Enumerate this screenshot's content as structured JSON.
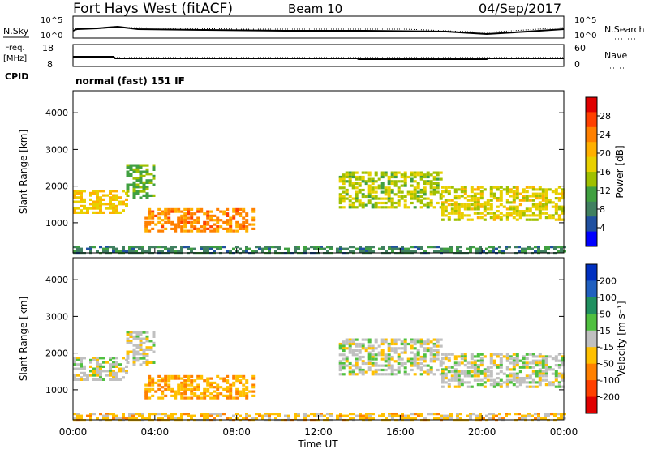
{
  "header": {
    "station": "Fort Hays West (fitACF)",
    "beam": "Beam 10",
    "date": "04/Sep/2017"
  },
  "strips": {
    "nsky_label": "N.Sky",
    "nsearch_label": "N.Search",
    "noise_ticks": [
      "10^5",
      "10^0"
    ],
    "freq_label_1": "Freq.",
    "freq_label_2": "[MHz]",
    "freq_ticks": [
      "18",
      "8"
    ],
    "nave_label": "Nave",
    "nave_ticks": [
      "60",
      "0"
    ],
    "cpid_label": "CPID",
    "cpid_text": "normal (fast) 151 IF"
  },
  "power_panel": {
    "ylabel": "Slant Range [km]",
    "colorbar_label": "Power [dB]",
    "colorbar_ticks": [
      "28",
      "24",
      "20",
      "16",
      "12",
      "8",
      "4"
    ],
    "colorbar_colors": [
      "#e00000",
      "#ff4000",
      "#ff8000",
      "#ffb000",
      "#e8d000",
      "#a0c000",
      "#40a040",
      "#408060",
      "#2050a0",
      "#0000ff"
    ]
  },
  "velocity_panel": {
    "ylabel": "Slant Range [km]",
    "colorbar_label": "Velocity [m s⁻¹]",
    "colorbar_ticks": [
      "200",
      "100",
      "50",
      "15",
      "-15",
      "-50",
      "-100",
      "-200"
    ],
    "colorbar_colors": [
      "#0030c0",
      "#2060c0",
      "#209060",
      "#50c040",
      "#c0c0c0",
      "#ffc000",
      "#ff8000",
      "#ff4000",
      "#e00000"
    ]
  },
  "axes": {
    "xlabel": "Time UT",
    "xticks": [
      "00:00",
      "04:00",
      "08:00",
      "12:00",
      "16:00",
      "20:00",
      "00:00"
    ],
    "yticks": [
      "1000",
      "2000",
      "3000",
      "4000"
    ]
  },
  "chart_data": [
    {
      "type": "heatmap",
      "title": "Fort Hays West (fitACF) Beam 10 04/Sep/2017",
      "xlabel": "Time UT",
      "ylabel": "Slant Range [km]",
      "xlim": [
        0,
        24
      ],
      "ylim": [
        180,
        4600
      ],
      "colorbar": "Power [dB]",
      "clim": [
        0,
        30
      ],
      "regions": [
        {
          "t0": 0.0,
          "t1": 2.6,
          "r0": 1300,
          "r1": 1900,
          "value": 18
        },
        {
          "t0": 2.6,
          "t1": 4.0,
          "r0": 1700,
          "r1": 2600,
          "value": 12
        },
        {
          "t0": 3.5,
          "t1": 8.8,
          "r0": 800,
          "r1": 1400,
          "value": 22
        },
        {
          "t0": 0.0,
          "t1": 24.0,
          "r0": 180,
          "r1": 380,
          "value": 8
        },
        {
          "t0": 13.0,
          "t1": 18.0,
          "r0": 1400,
          "r1": 2400,
          "value": 14
        },
        {
          "t0": 18.0,
          "t1": 24.0,
          "r0": 1100,
          "r1": 2000,
          "value": 16
        }
      ]
    },
    {
      "type": "heatmap",
      "title": "",
      "xlabel": "Time UT",
      "ylabel": "Slant Range [km]",
      "xlim": [
        0,
        24
      ],
      "ylim": [
        180,
        4600
      ],
      "colorbar": "Velocity [m s⁻¹]",
      "clim": [
        -200,
        200
      ],
      "regions": [
        {
          "t0": 0.0,
          "t1": 2.6,
          "r0": 1300,
          "r1": 1900,
          "value": 0
        },
        {
          "t0": 2.6,
          "t1": 4.0,
          "r0": 1700,
          "r1": 2600,
          "value": 0
        },
        {
          "t0": 3.5,
          "t1": 8.8,
          "r0": 800,
          "r1": 1400,
          "value": -60
        },
        {
          "t0": 0.0,
          "t1": 24.0,
          "r0": 180,
          "r1": 380,
          "value": -40
        },
        {
          "t0": 13.0,
          "t1": 18.0,
          "r0": 1400,
          "r1": 2400,
          "value": 0
        },
        {
          "t0": 18.0,
          "t1": 24.0,
          "r0": 1100,
          "r1": 2000,
          "value": 0
        }
      ]
    }
  ]
}
